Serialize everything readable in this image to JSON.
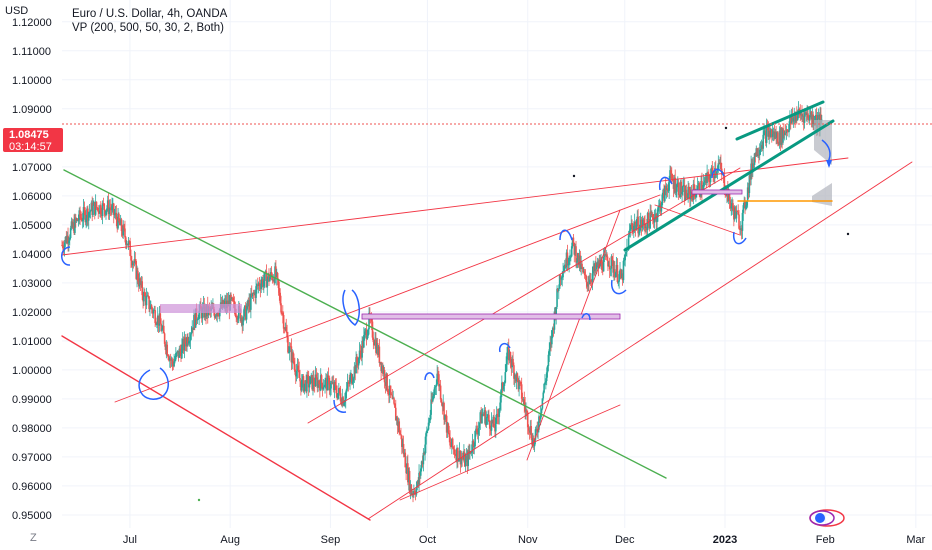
{
  "chart_data": {
    "type": "candlestick",
    "title": "Euro / U.S. Dollar, 4h, OANDA",
    "indicator": "VP (200, 500, 50, 30, 2, Both)",
    "y_axis_label": "USD",
    "ylim": [
      0.9455,
      1.1275
    ],
    "y_ticks": [
      "1.12000",
      "1.11000",
      "1.10000",
      "1.09000",
      "1.07000",
      "1.06000",
      "1.05000",
      "1.04000",
      "1.03000",
      "1.02000",
      "1.01000",
      "1.00000",
      "0.99000",
      "0.98000",
      "0.97000",
      "0.96000",
      "0.95000"
    ],
    "y_tick_values": [
      1.12,
      1.11,
      1.1,
      1.09,
      1.07,
      1.06,
      1.05,
      1.04,
      1.03,
      1.02,
      1.01,
      1.0,
      0.99,
      0.98,
      0.97,
      0.96,
      0.95
    ],
    "x_ticks": [
      "Jul",
      "Aug",
      "Sep",
      "Oct",
      "Nov",
      "Dec",
      "2023",
      "Feb",
      "Mar"
    ],
    "x_tick_dates": [
      "2022-07-01",
      "2022-08-01",
      "2022-09-01",
      "2022-10-01",
      "2022-11-01",
      "2022-12-01",
      "2023-01-01",
      "2023-02-01",
      "2023-03-01"
    ],
    "xlim": [
      "2022-06-10",
      "2023-03-06"
    ],
    "current_price": "1.08475",
    "countdown": "03:14:57",
    "current_price_value": 1.08475,
    "price_path": [
      [
        "2022-06-10",
        1.043
      ],
      [
        "2022-06-15",
        1.052
      ],
      [
        "2022-06-20",
        1.056
      ],
      [
        "2022-06-25",
        1.056
      ],
      [
        "2022-06-30",
        1.045
      ],
      [
        "2022-07-05",
        1.026
      ],
      [
        "2022-07-10",
        1.017
      ],
      [
        "2022-07-14",
        1.002
      ],
      [
        "2022-07-18",
        1.009
      ],
      [
        "2022-07-22",
        1.02
      ],
      [
        "2022-07-27",
        1.02
      ],
      [
        "2022-08-01",
        1.023
      ],
      [
        "2022-08-05",
        1.018
      ],
      [
        "2022-08-10",
        1.03
      ],
      [
        "2022-08-15",
        1.033
      ],
      [
        "2022-08-19",
        1.008
      ],
      [
        "2022-08-23",
        0.995
      ],
      [
        "2022-08-28",
        0.996
      ],
      [
        "2022-09-01",
        0.995
      ],
      [
        "2022-09-05",
        0.99
      ],
      [
        "2022-09-10",
        1.005
      ],
      [
        "2022-09-13",
        1.017
      ],
      [
        "2022-09-17",
        1.001
      ],
      [
        "2022-09-22",
        0.981
      ],
      [
        "2022-09-26",
        0.958
      ],
      [
        "2022-09-28",
        0.96
      ],
      [
        "2022-10-04",
        0.999
      ],
      [
        "2022-10-08",
        0.974
      ],
      [
        "2022-10-13",
        0.968
      ],
      [
        "2022-10-18",
        0.985
      ],
      [
        "2022-10-22",
        0.98
      ],
      [
        "2022-10-26",
        1.006
      ],
      [
        "2022-10-30",
        0.992
      ],
      [
        "2022-11-03",
        0.974
      ],
      [
        "2022-11-07",
        1.0
      ],
      [
        "2022-11-11",
        1.033
      ],
      [
        "2022-11-15",
        1.043
      ],
      [
        "2022-11-19",
        1.03
      ],
      [
        "2022-11-23",
        1.036
      ],
      [
        "2022-11-26",
        1.038
      ],
      [
        "2022-11-30",
        1.031
      ],
      [
        "2022-12-03",
        1.05
      ],
      [
        "2022-12-07",
        1.05
      ],
      [
        "2022-12-11",
        1.054
      ],
      [
        "2022-12-15",
        1.066
      ],
      [
        "2022-12-20",
        1.06
      ],
      [
        "2022-12-25",
        1.063
      ],
      [
        "2022-12-30",
        1.071
      ],
      [
        "2023-01-03",
        1.056
      ],
      [
        "2023-01-06",
        1.05
      ],
      [
        "2023-01-10",
        1.074
      ],
      [
        "2023-01-14",
        1.082
      ],
      [
        "2023-01-18",
        1.08
      ],
      [
        "2023-01-23",
        1.088
      ],
      [
        "2023-01-27",
        1.088
      ],
      [
        "2023-01-31",
        1.0848
      ]
    ]
  },
  "ui": {
    "zoom_button": "Z",
    "logo_alt": "TradingView"
  },
  "colors": {
    "bull": "#26a69a",
    "bear": "#ef5350",
    "trend_red": "#f23645",
    "trend_green": "#4caf50",
    "channel_teal": "#089981",
    "marker_blue": "#2962ff",
    "box_purple": "#e1bee7",
    "box_border": "#9c27b0",
    "price_line": "#ef5350",
    "grid": "#f0f3fa"
  }
}
